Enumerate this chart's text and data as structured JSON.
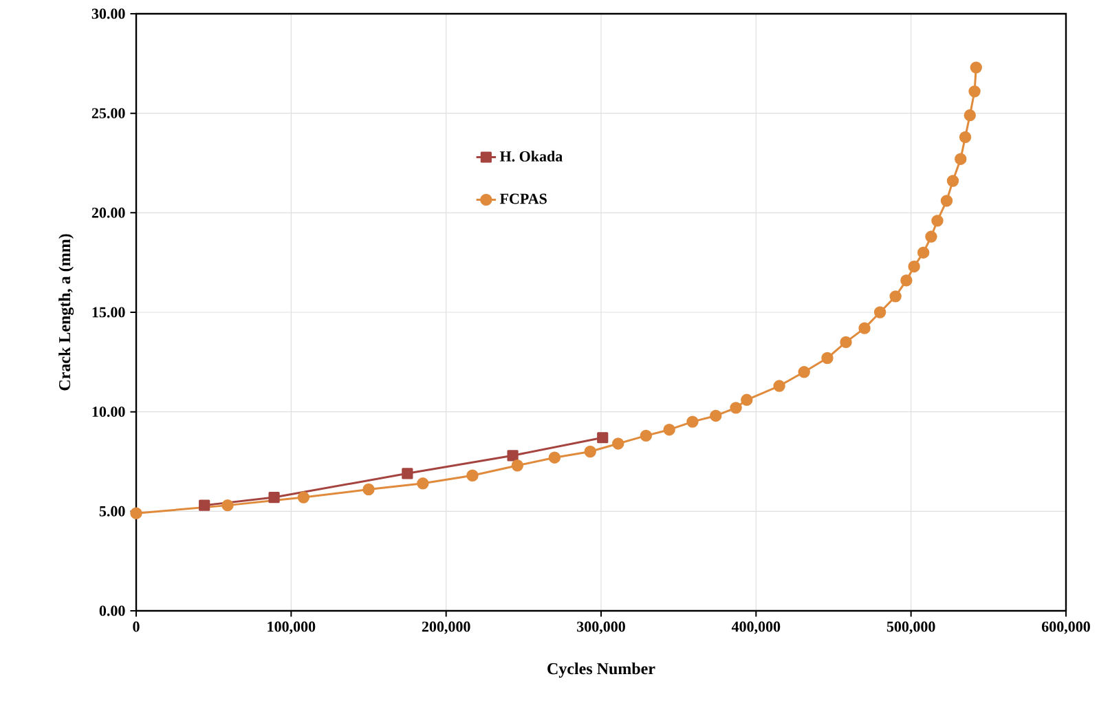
{
  "chart_data": {
    "type": "line",
    "xlabel": "Cycles Number",
    "ylabel": "Crack Length, a (mm)",
    "xlim": [
      0,
      600000
    ],
    "ylim": [
      0,
      30
    ],
    "xticks": [
      {
        "value": 0,
        "label": "0"
      },
      {
        "value": 100000,
        "label": "100,000"
      },
      {
        "value": 200000,
        "label": "200,000"
      },
      {
        "value": 300000,
        "label": "300,000"
      },
      {
        "value": 400000,
        "label": "400,000"
      },
      {
        "value": 500000,
        "label": "500,000"
      },
      {
        "value": 600000,
        "label": "600,000"
      }
    ],
    "yticks": [
      {
        "value": 0,
        "label": "0.00"
      },
      {
        "value": 5,
        "label": "5.00"
      },
      {
        "value": 10,
        "label": "10.00"
      },
      {
        "value": 15,
        "label": "15.00"
      },
      {
        "value": 20,
        "label": "20.00"
      },
      {
        "value": 25,
        "label": "25.00"
      },
      {
        "value": 30,
        "label": "30.00"
      }
    ],
    "grid": true,
    "legend": "top",
    "series": [
      {
        "name": "H. Okada",
        "color": "#a5443f",
        "marker": "square",
        "x": [
          44000,
          89000,
          175000,
          243000,
          301000
        ],
        "values": [
          5.3,
          5.7,
          6.9,
          7.8,
          8.7
        ]
      },
      {
        "name": "FCPAS",
        "color": "#e08a3c",
        "marker": "circle",
        "x": [
          0,
          59000,
          108000,
          150000,
          185000,
          217000,
          246000,
          270000,
          293000,
          311000,
          329000,
          344000,
          359000,
          374000,
          387000,
          394000,
          415000,
          431000,
          446000,
          458000,
          470000,
          480000,
          490000,
          497000,
          502000,
          508000,
          513000,
          517000,
          523000,
          527000,
          532000,
          535000,
          538000,
          541000,
          542000
        ],
        "values": [
          4.9,
          5.3,
          5.7,
          6.1,
          6.4,
          6.8,
          7.3,
          7.7,
          8.0,
          8.4,
          8.8,
          9.1,
          9.5,
          9.8,
          10.2,
          10.6,
          11.3,
          12.0,
          12.7,
          13.5,
          14.2,
          15.0,
          15.8,
          16.6,
          17.3,
          18.0,
          18.8,
          19.6,
          20.6,
          21.6,
          22.7,
          23.8,
          24.9,
          26.1,
          27.3
        ]
      }
    ]
  }
}
